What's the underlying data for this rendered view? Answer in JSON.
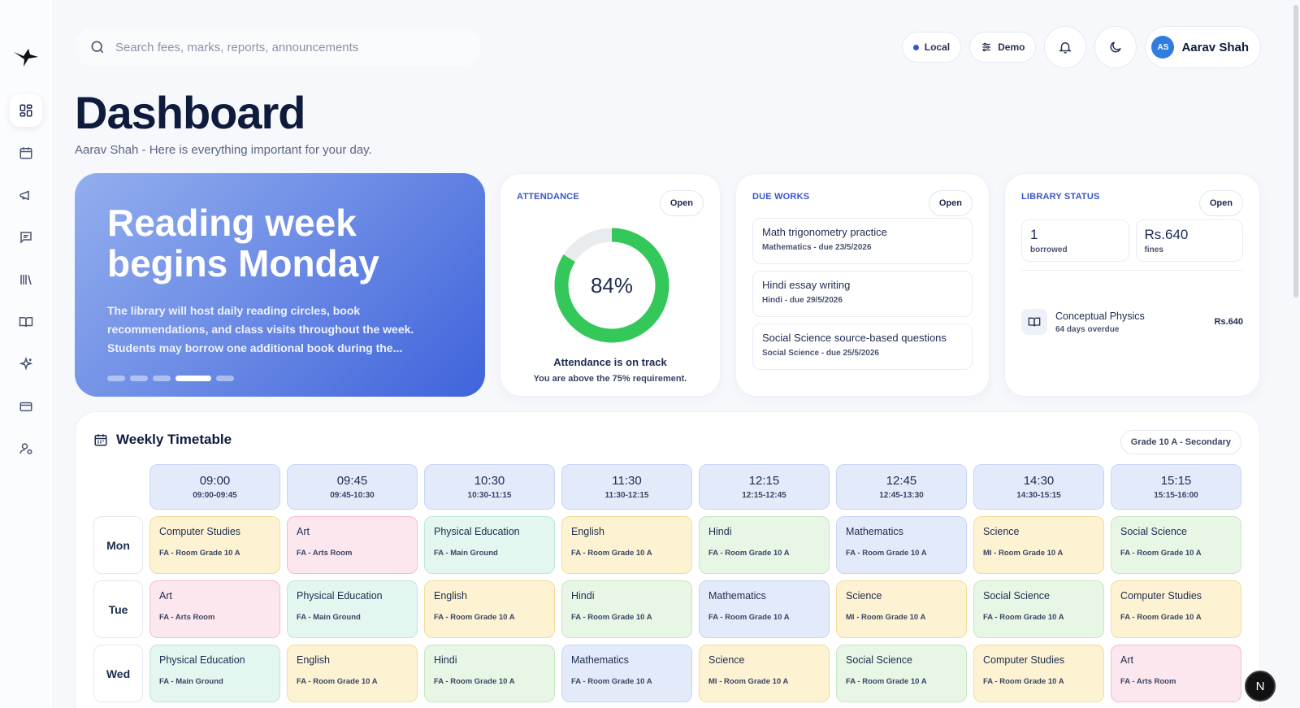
{
  "search": {
    "placeholder": "Search fees, marks, reports, announcements"
  },
  "topbar": {
    "env_label": "Local",
    "demo_label": "Demo",
    "user": {
      "initials": "AS",
      "name": "Aarav Shah"
    }
  },
  "page": {
    "title": "Dashboard",
    "subtitle": "Aarav Shah - Here is everything important for your day."
  },
  "hero": {
    "title": "Reading week begins Monday",
    "text": "The library will host daily reading circles, book recommendations, and class visits throughout the week. Students may borrow one additional book during the...",
    "active_slide": 4,
    "slide_count": 5
  },
  "attendance": {
    "label": "ATTENDANCE",
    "open_label": "Open",
    "percent": 84,
    "percent_text": "84%",
    "status": "Attendance is on track",
    "note": "You are above the 75% requirement.",
    "colors": {
      "ring": "#34c759",
      "track": "#e9ecef"
    }
  },
  "due_works": {
    "label": "DUE WORKS",
    "open_label": "Open",
    "items": [
      {
        "name": "Math trigonometry practice",
        "meta": "Mathematics - due 23/5/2026"
      },
      {
        "name": "Hindi essay writing",
        "meta": "Hindi - due 29/5/2026"
      },
      {
        "name": "Social Science source-based questions",
        "meta": "Social Science - due 25/5/2026"
      }
    ]
  },
  "library": {
    "label": "LIBRARY STATUS",
    "open_label": "Open",
    "borrowed_value": "1",
    "borrowed_label": "borrowed",
    "fines_value": "Rs.640",
    "fines_label": "fines",
    "book": {
      "title": "Conceptual Physics",
      "meta": "64 days overdue",
      "fine": "Rs.640"
    }
  },
  "timetable": {
    "title": "Weekly Timetable",
    "grade": "Grade 10 A - Secondary",
    "slots": [
      {
        "time": "09:00",
        "range": "09:00-09:45"
      },
      {
        "time": "09:45",
        "range": "09:45-10:30"
      },
      {
        "time": "10:30",
        "range": "10:30-11:15"
      },
      {
        "time": "11:30",
        "range": "11:30-12:15"
      },
      {
        "time": "12:15",
        "range": "12:15-12:45"
      },
      {
        "time": "12:45",
        "range": "12:45-13:30"
      },
      {
        "time": "14:30",
        "range": "14:30-15:15"
      },
      {
        "time": "15:15",
        "range": "15:15-16:00"
      }
    ],
    "days": [
      {
        "name": "Mon",
        "cells": [
          {
            "subject": "Computer Studies",
            "room": "FA - Room Grade 10 A",
            "color": "yellow"
          },
          {
            "subject": "Art",
            "room": "FA - Arts Room",
            "color": "pink"
          },
          {
            "subject": "Physical Education",
            "room": "FA - Main Ground",
            "color": "teal"
          },
          {
            "subject": "English",
            "room": "FA - Room Grade 10 A",
            "color": "yellow"
          },
          {
            "subject": "Hindi",
            "room": "FA - Room Grade 10 A",
            "color": "green"
          },
          {
            "subject": "Mathematics",
            "room": "FA - Room Grade 10 A",
            "color": "blue"
          },
          {
            "subject": "Science",
            "room": "MI - Room Grade 10 A",
            "color": "yellow"
          },
          {
            "subject": "Social Science",
            "room": "FA - Room Grade 10 A",
            "color": "green"
          }
        ]
      },
      {
        "name": "Tue",
        "cells": [
          {
            "subject": "Art",
            "room": "FA - Arts Room",
            "color": "pink"
          },
          {
            "subject": "Physical Education",
            "room": "FA - Main Ground",
            "color": "teal"
          },
          {
            "subject": "English",
            "room": "FA - Room Grade 10 A",
            "color": "yellow"
          },
          {
            "subject": "Hindi",
            "room": "FA - Room Grade 10 A",
            "color": "green"
          },
          {
            "subject": "Mathematics",
            "room": "FA - Room Grade 10 A",
            "color": "blue"
          },
          {
            "subject": "Science",
            "room": "MI - Room Grade 10 A",
            "color": "yellow"
          },
          {
            "subject": "Social Science",
            "room": "FA - Room Grade 10 A",
            "color": "green"
          },
          {
            "subject": "Computer Studies",
            "room": "FA - Room Grade 10 A",
            "color": "yellow"
          }
        ]
      },
      {
        "name": "Wed",
        "cells": [
          {
            "subject": "Physical Education",
            "room": "FA - Main Ground",
            "color": "teal"
          },
          {
            "subject": "English",
            "room": "FA - Room Grade 10 A",
            "color": "yellow"
          },
          {
            "subject": "Hindi",
            "room": "FA - Room Grade 10 A",
            "color": "green"
          },
          {
            "subject": "Mathematics",
            "room": "FA - Room Grade 10 A",
            "color": "blue"
          },
          {
            "subject": "Science",
            "room": "MI - Room Grade 10 A",
            "color": "yellow"
          },
          {
            "subject": "Social Science",
            "room": "FA - Room Grade 10 A",
            "color": "green"
          },
          {
            "subject": "Computer Studies",
            "room": "FA - Room Grade 10 A",
            "color": "yellow"
          },
          {
            "subject": "Art",
            "room": "FA - Arts Room",
            "color": "pink"
          }
        ]
      }
    ]
  },
  "fab": {
    "label": "N"
  },
  "sidebar": {
    "items": [
      {
        "icon": "dashboard-icon",
        "active": true
      },
      {
        "icon": "calendar-icon",
        "active": false
      },
      {
        "icon": "megaphone-icon",
        "active": false
      },
      {
        "icon": "chat-icon",
        "active": false
      },
      {
        "icon": "library-icon",
        "active": false
      },
      {
        "icon": "book-icon",
        "active": false
      },
      {
        "icon": "sparkle-icon",
        "active": false
      },
      {
        "icon": "card-icon",
        "active": false
      },
      {
        "icon": "user-settings-icon",
        "active": false
      }
    ]
  }
}
